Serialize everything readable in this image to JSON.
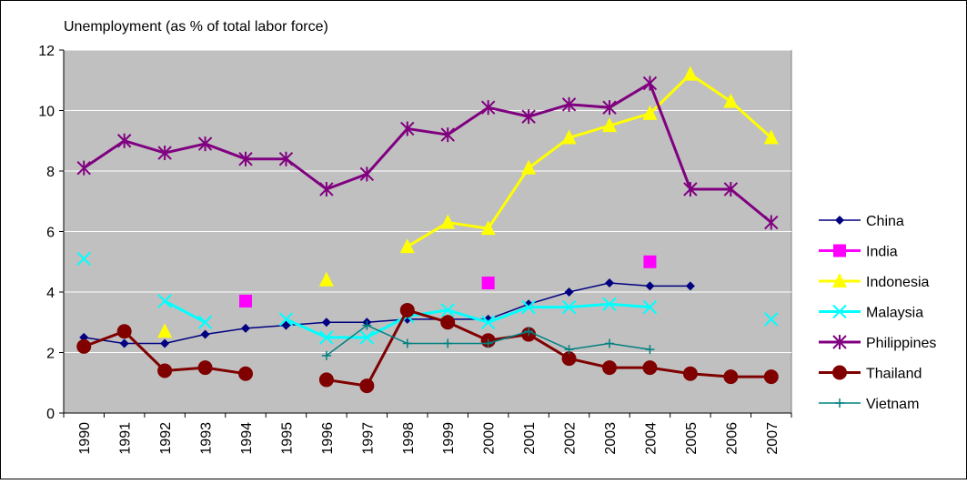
{
  "chart_data": {
    "type": "line",
    "title": "Unemployment (as % of total labor force)",
    "categories": [
      "1990",
      "1991",
      "1992",
      "1993",
      "1994",
      "1995",
      "1996",
      "1997",
      "1998",
      "1999",
      "2000",
      "2001",
      "2002",
      "2003",
      "2004",
      "2005",
      "2006",
      "2007"
    ],
    "ylim": [
      0,
      12
    ],
    "yticks": [
      0,
      2,
      4,
      6,
      8,
      10,
      12
    ],
    "grid": true,
    "legend": "right",
    "background": "#c0c0c0",
    "series": [
      {
        "name": "China",
        "color": "#000080",
        "marker": "diamond",
        "line_width": 1.5,
        "values": [
          2.5,
          2.3,
          2.3,
          2.6,
          2.8,
          2.9,
          3.0,
          3.0,
          3.1,
          3.1,
          3.1,
          3.6,
          4.0,
          4.3,
          4.2,
          4.2,
          null,
          null
        ]
      },
      {
        "name": "India",
        "color": "#ff00ff",
        "marker": "square",
        "line_width": 3,
        "values": [
          null,
          null,
          null,
          null,
          3.7,
          null,
          null,
          null,
          null,
          null,
          4.3,
          null,
          null,
          null,
          5.0,
          null,
          null,
          null
        ]
      },
      {
        "name": "Indonesia",
        "color": "#ffff00",
        "marker": "triangle",
        "line_width": 3,
        "values": [
          null,
          null,
          2.7,
          null,
          null,
          null,
          4.4,
          null,
          5.5,
          6.3,
          6.1,
          8.1,
          9.1,
          9.5,
          9.9,
          11.2,
          10.3,
          9.1
        ]
      },
      {
        "name": "Malaysia",
        "color": "#00ffff",
        "marker": "x",
        "line_width": 3,
        "values": [
          5.1,
          null,
          3.7,
          3.0,
          null,
          3.1,
          2.5,
          2.5,
          3.2,
          3.4,
          3.0,
          3.5,
          3.5,
          3.6,
          3.5,
          null,
          null,
          3.1
        ]
      },
      {
        "name": "Philippines",
        "color": "#800080",
        "marker": "star",
        "line_width": 3,
        "values": [
          8.1,
          9.0,
          8.6,
          8.9,
          8.4,
          8.4,
          7.4,
          7.9,
          9.4,
          9.2,
          10.1,
          9.8,
          10.2,
          10.1,
          10.9,
          7.4,
          7.4,
          6.3
        ]
      },
      {
        "name": "Thailand",
        "color": "#800000",
        "marker": "circle",
        "line_width": 3,
        "values": [
          2.2,
          2.7,
          1.4,
          1.5,
          1.3,
          null,
          1.1,
          0.9,
          3.4,
          3.0,
          2.4,
          2.6,
          1.8,
          1.5,
          1.5,
          1.3,
          1.2,
          1.2
        ]
      },
      {
        "name": "Vietnam",
        "color": "#008080",
        "marker": "plus",
        "line_width": 1.5,
        "values": [
          null,
          null,
          null,
          null,
          null,
          null,
          1.9,
          2.9,
          2.3,
          2.3,
          2.3,
          2.7,
          2.1,
          2.3,
          2.1,
          null,
          null,
          null
        ]
      }
    ]
  }
}
